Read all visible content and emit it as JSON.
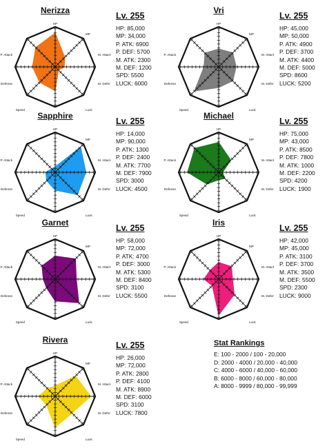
{
  "axes": [
    "HP",
    "MP",
    "M. Attack",
    "M. Defense",
    "Luck",
    "Speed",
    "P. Defense",
    "P. Attack"
  ],
  "characters": [
    {
      "name": "Nerizza",
      "level": "Lv. 255",
      "color": "#F07316",
      "stats": [
        "HP: 85,000",
        "MP: 34,000",
        "P. ATK: 6900",
        "P. DEF: 5700",
        "M. ATK: 2300",
        "M. DEF: 1200",
        "SPD: 5500",
        "LUCK: 6000"
      ]
    },
    {
      "name": "Vri",
      "level": "Lv. 255",
      "color": "#7F7F7F",
      "stats": [
        "HP: 45,000",
        "MP: 50,000",
        "P. ATK: 4900",
        "P. DEF: 3700",
        "M. ATK: 4400",
        "M. DEF: 5000",
        "SPD: 8600",
        "LUCK: 5200"
      ]
    },
    {
      "name": "Sapphire",
      "level": "Lv. 255",
      "color": "#1E9CF0",
      "stats": [
        "HP: 14,000",
        "MP: 90,000",
        "P. ATK: 1300",
        "P. DEF: 2400",
        "M. ATK: 7700",
        "M. DEF: 7900",
        "SPD: 3000",
        "LUCK: 4500"
      ]
    },
    {
      "name": "Michael",
      "level": "Lv. 255",
      "color": "#1B7A1B",
      "stats": [
        "HP: 75,000",
        "MP: 43,000",
        "P. ATK: 8500",
        "P. DEF: 7800",
        "M. ATK: 1000",
        "M. DEF: 2200",
        "SPD: 4200",
        "LUCK: 1900"
      ]
    },
    {
      "name": "Garnet",
      "level": "Lv. 255",
      "color": "#7B0A7B",
      "stats": [
        "HP: 58,000",
        "MP: 72,000",
        "P. ATK: 4700",
        "P. DEF: 3000",
        "M. ATK: 5300",
        "M. DEF: 8400",
        "SPD: 3100",
        "LUCK: 5500"
      ]
    },
    {
      "name": "Iris",
      "level": "Lv. 255",
      "color": "#EE1E7A",
      "stats": [
        "HP: 42,000",
        "MP: 45,000",
        "P. ATK: 3100",
        "P. DEF: 3700",
        "M. ATK: 3500",
        "M. DEF: 5500",
        "SPD: 2300",
        "LUCK: 9000"
      ]
    },
    {
      "name": "Rivera",
      "level": "Lv. 255",
      "color": "#F5D416",
      "stats": [
        "HP: 26,000",
        "MP: 72,000",
        "P. ATK: 2800",
        "P. DEF: 4100",
        "M. ATK: 8900",
        "M. DEF: 6000",
        "SPD: 3100",
        "LUCK: 7800"
      ]
    }
  ],
  "rankings": {
    "title": "Stat Rankings",
    "rows": [
      "E: 100 - 2000 / 100 - 20,000",
      "D: 2000 - 4000 / 20,000 - 40,000",
      "C: 4000 - 6000 / 40,000 - 60,000",
      "B: 6000 - 8000 / 60,000 - 80,000",
      "A: 8000 - 9999 / 80,000 - 99,999"
    ]
  },
  "chart_data": {
    "type": "radar",
    "axes": [
      "HP",
      "MP",
      "M. Attack",
      "M. Defense",
      "Luck",
      "Speed",
      "P. Defense",
      "P. Attack"
    ],
    "scale": {
      "HP": [
        0,
        100000
      ],
      "MP": [
        0,
        100000
      ],
      "M. Attack": [
        0,
        10000
      ],
      "M. Defense": [
        0,
        10000
      ],
      "Luck": [
        0,
        10000
      ],
      "Speed": [
        0,
        10000
      ],
      "P. Defense": [
        0,
        10000
      ],
      "P. Attack": [
        0,
        10000
      ]
    },
    "series": [
      {
        "name": "Nerizza",
        "values": [
          85000,
          34000,
          2300,
          1200,
          6000,
          5500,
          5700,
          6900
        ]
      },
      {
        "name": "Vri",
        "values": [
          45000,
          50000,
          4400,
          5000,
          5200,
          8600,
          3700,
          4900
        ]
      },
      {
        "name": "Sapphire",
        "values": [
          14000,
          90000,
          7700,
          7900,
          4500,
          3000,
          2400,
          1300
        ]
      },
      {
        "name": "Michael",
        "values": [
          75000,
          43000,
          1000,
          2200,
          1900,
          4200,
          7800,
          8500
        ]
      },
      {
        "name": "Garnet",
        "values": [
          58000,
          72000,
          5300,
          8400,
          5500,
          3100,
          3000,
          4700
        ]
      },
      {
        "name": "Iris",
        "values": [
          42000,
          45000,
          3500,
          5500,
          9000,
          2300,
          3700,
          3100
        ]
      },
      {
        "name": "Rivera",
        "values": [
          26000,
          72000,
          8900,
          6000,
          7800,
          3100,
          4100,
          2800
        ]
      }
    ]
  }
}
